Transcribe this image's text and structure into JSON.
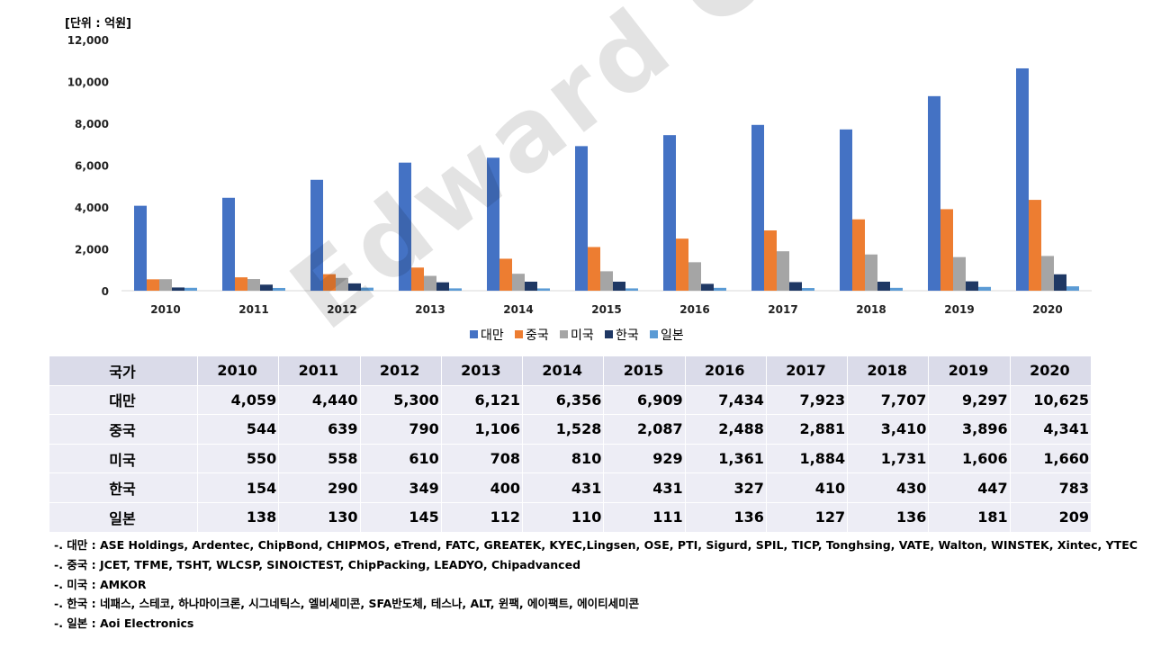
{
  "unit_label": "[단위 : 억원]",
  "watermark": "Edward Choi",
  "chart_data": {
    "type": "bar",
    "ylim": [
      0,
      12000
    ],
    "y_ticks": [
      "0",
      "2,000",
      "4,000",
      "6,000",
      "8,000",
      "10,000",
      "12,000"
    ],
    "categories": [
      "2010",
      "2011",
      "2012",
      "2013",
      "2014",
      "2015",
      "2016",
      "2017",
      "2018",
      "2019",
      "2020"
    ],
    "series": [
      {
        "name": "대만",
        "color": "#4472c4",
        "values": [
          4059,
          4440,
          5300,
          6121,
          6356,
          6909,
          7434,
          7923,
          7707,
          9297,
          10625
        ]
      },
      {
        "name": "중국",
        "color": "#ed7d31",
        "values": [
          544,
          639,
          790,
          1106,
          1528,
          2087,
          2488,
          2881,
          3410,
          3896,
          4341
        ]
      },
      {
        "name": "미국",
        "color": "#a5a5a5",
        "values": [
          550,
          558,
          610,
          708,
          810,
          929,
          1361,
          1884,
          1731,
          1606,
          1660
        ]
      },
      {
        "name": "한국",
        "color": "#1f3864",
        "values": [
          154,
          290,
          349,
          400,
          431,
          431,
          327,
          410,
          430,
          447,
          783
        ]
      },
      {
        "name": "일본",
        "color": "#5b9bd5",
        "values": [
          138,
          130,
          145,
          112,
          110,
          111,
          136,
          127,
          136,
          181,
          209
        ]
      }
    ],
    "legend_position": "bottom",
    "grid": false
  },
  "table": {
    "header": [
      "국가",
      "2010",
      "2011",
      "2012",
      "2013",
      "2014",
      "2015",
      "2016",
      "2017",
      "2018",
      "2019",
      "2020"
    ],
    "rows": [
      [
        "대만",
        "4,059",
        "4,440",
        "5,300",
        "6,121",
        "6,356",
        "6,909",
        "7,434",
        "7,923",
        "7,707",
        "9,297",
        "10,625"
      ],
      [
        "중국",
        "544",
        "639",
        "790",
        "1,106",
        "1,528",
        "2,087",
        "2,488",
        "2,881",
        "3,410",
        "3,896",
        "4,341"
      ],
      [
        "미국",
        "550",
        "558",
        "610",
        "708",
        "810",
        "929",
        "1,361",
        "1,884",
        "1,731",
        "1,606",
        "1,660"
      ],
      [
        "한국",
        "154",
        "290",
        "349",
        "400",
        "431",
        "431",
        "327",
        "410",
        "430",
        "447",
        "783"
      ],
      [
        "일본",
        "138",
        "130",
        "145",
        "112",
        "110",
        "111",
        "136",
        "127",
        "136",
        "181",
        "209"
      ]
    ]
  },
  "notes": [
    "-. 대만 : ASE Holdings, Ardentec, ChipBond, CHIPMOS, eTrend, FATC, GREATEK, KYEC,Lingsen, OSE, PTI, Sigurd, SPIL, TICP, Tonghsing, VATE, Walton, WINSTEK, Xintec, YTEC",
    "-. 중국 : JCET, TFME, TSHT, WLCSP, SINOICTEST, ChipPacking, LEADYO, Chipadvanced",
    "-. 미국 : AMKOR",
    "-. 한국 : 네패스, 스테코, 하나마이크론, 시그네틱스, 엘비세미콘, SFA반도체, 테스나, ALT, 윈팩, 에이팩트, 에이티세미콘",
    "-. 일본 : Aoi Electronics"
  ]
}
